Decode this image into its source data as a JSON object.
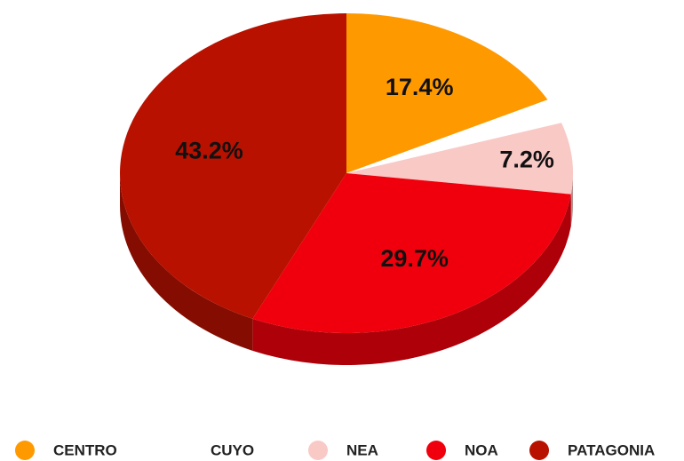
{
  "chart_data": {
    "type": "pie",
    "three_d": true,
    "categories": [
      "CENTRO",
      "CUYO",
      "NEA",
      "NOA",
      "PATAGONIA"
    ],
    "values": [
      17.4,
      2.5,
      7.2,
      29.7,
      43.2
    ],
    "value_labels": [
      "17.4%",
      null,
      "7.2%",
      "29.7%",
      "43.2%"
    ],
    "colors": [
      "#ff9900",
      "#ffffff",
      "#f9c9c6",
      "#f0000c",
      "#b81100"
    ],
    "legend": "bottom"
  }
}
